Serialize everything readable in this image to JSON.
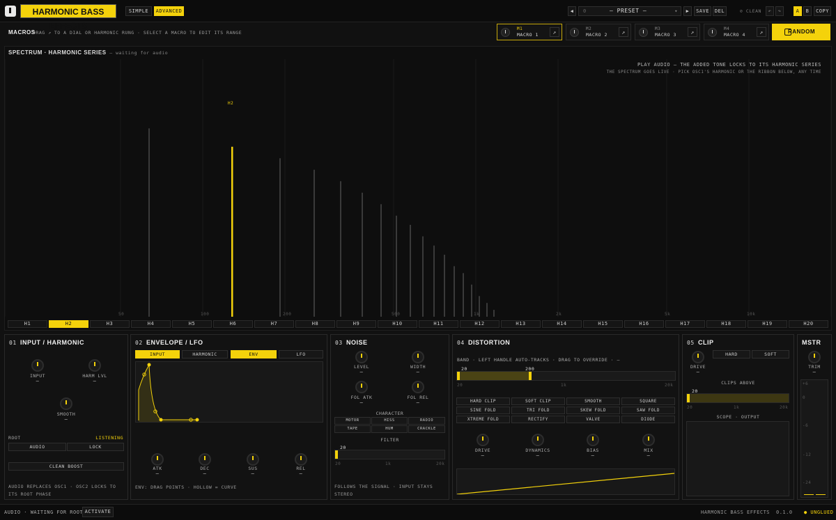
{
  "top": {
    "brand": "HARMONIC BASS EFFECTS",
    "modes": [
      "SIMPLE",
      "ADVANCED"
    ],
    "active_mode": "ADVANCED",
    "preset_index": "0",
    "preset_name": "— PRESET —",
    "save": "SAVE",
    "del": "DEL",
    "clean": "⊘ CLEAN",
    "undo": "↶",
    "redo": "↷",
    "ab": [
      "A",
      "B"
    ],
    "copy": "COPY",
    "prev": "◀",
    "next": "▶"
  },
  "macros": {
    "title": "MACROS",
    "hint": "DRAG ↗ TO A DIAL OR HARMONIC RUNG · SELECT A MACRO TO EDIT ITS RANGE",
    "items": [
      {
        "tag": "M1",
        "name": "MACRO 1"
      },
      {
        "tag": "M2",
        "name": "MACRO 2"
      },
      {
        "tag": "M3",
        "name": "MACRO 3"
      },
      {
        "tag": "M4",
        "name": "MACRO 4"
      }
    ],
    "arrow": "↗",
    "random": "RANDOM"
  },
  "spectrum": {
    "title": "SPECTRUM · HARMONIC SERIES",
    "status": "— waiting for audio",
    "msg1": "PLAY AUDIO — THE ADDED TONE LOCKS TO ITS HARMONIC SERIES",
    "msg2": "THE SPECTRUM GOES LIVE · PICK OSC1'S HARMONIC OR THE RIBBON BELOW, ANY TIME",
    "selected_label": "H2",
    "freq_labels": [
      "50",
      "100",
      "200",
      "500",
      "1k",
      "2k",
      "5k",
      "10k"
    ],
    "harmonics": [
      "H1",
      "H2",
      "H3",
      "H4",
      "H5",
      "H6",
      "H7",
      "H8",
      "H9",
      "H10",
      "H11",
      "H12",
      "H13",
      "H14",
      "H15",
      "H16",
      "H17",
      "H18",
      "H19",
      "H20"
    ],
    "selected": "H2",
    "bar_levels": [
      0.82,
      0.74,
      0.69,
      0.64,
      0.59,
      0.54,
      0.49,
      0.44,
      0.4,
      0.35,
      0.31,
      0.27,
      0.22,
      0.19,
      0.14,
      0.09,
      0.06,
      0.03
    ]
  },
  "p1": {
    "num": "01",
    "title": "INPUT / HARMONIC",
    "knobs": [
      "INPUT",
      "HARM LVL",
      "SMOOTH"
    ],
    "dash": "—",
    "root": "ROOT",
    "listening": "LISTENING",
    "audio": "AUDIO",
    "lock": "LOCK",
    "clean_boost": "CLEAN BOOST",
    "note": "AUDIO REPLACES OSC1 · OSC2 LOCKS TO ITS ROOT PHASE"
  },
  "p2": {
    "num": "02",
    "title": "ENVELOPE / LFO",
    "tabs": [
      "INPUT",
      "HARMONIC",
      "ENV",
      "LFO"
    ],
    "knobs": [
      "ATK",
      "DEC",
      "SUS",
      "REL"
    ],
    "note": "ENV: DRAG POINTS · HOLLOW = CURVE"
  },
  "p3": {
    "num": "03",
    "title": "NOISE",
    "knobs": [
      "LEVEL",
      "WIDTH",
      "FOL ATK",
      "FOL REL"
    ],
    "character": "CHARACTER",
    "chars": [
      "MOTOR",
      "HISS",
      "RADIO",
      "TAPE",
      "HUM",
      "CRACKLE"
    ],
    "filter": "FILTER",
    "filter_val": "20",
    "ticks": [
      "20",
      "1k",
      "20k"
    ],
    "note": "FOLLOWS THE SIGNAL · INPUT STAYS STEREO"
  },
  "p4": {
    "num": "04",
    "title": "DISTORTION",
    "band": "BAND · LEFT HANDLE AUTO-TRACKS · DRAG TO OVERRIDE · —",
    "lo": "20",
    "hi": "200",
    "ticks": [
      "20",
      "1k",
      "20k"
    ],
    "modes": [
      "HARD CLIP",
      "SOFT CLIP",
      "SMOOTH",
      "SQUARE",
      "SINE FOLD",
      "TRI FOLD",
      "SKEW FOLD",
      "SAW FOLD",
      "XTREME FOLD",
      "RECTIFY",
      "VALVE",
      "DIODE"
    ],
    "knobs": [
      "DRIVE",
      "DYNAMICS",
      "BIAS",
      "MIX"
    ]
  },
  "p5": {
    "num": "05",
    "title": "CLIP",
    "knob": "DRIVE",
    "modes": [
      "HARD",
      "SOFT"
    ],
    "clips_above": "CLIPS ABOVE",
    "val": "20",
    "ticks": [
      "20",
      "1k",
      "20k"
    ],
    "scope": "SCOPE · OUTPUT"
  },
  "p6": {
    "title": "MSTR",
    "knob": "TRIM",
    "scale": [
      "+6",
      "0",
      "-6",
      "-12",
      "-24",
      "-36"
    ]
  },
  "status": {
    "left": "AUDIO · WAITING FOR ROOT",
    "activate": "ACTIVATE",
    "product": "HARMONIC BASS EFFECTS",
    "version": "0.1.0",
    "plug": "● UNGLUED"
  },
  "colors": {
    "accent": "#f4d20b",
    "bg": "#111111"
  }
}
